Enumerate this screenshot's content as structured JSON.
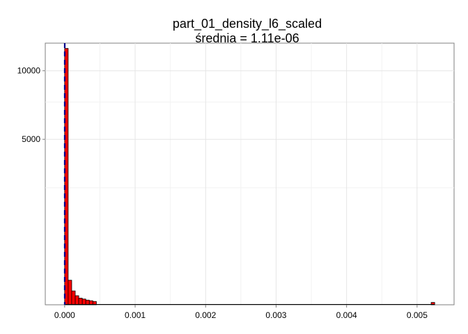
{
  "chart_data": {
    "type": "bar",
    "title": "part_01_density_l6_scaled",
    "subtitle": "średnia = 1.11e-06",
    "xlabel": "",
    "ylabel": "",
    "y_scale": "sqrt",
    "grid": true,
    "x_ticks": [
      "0.000",
      "0.001",
      "0.002",
      "0.003",
      "0.004",
      "0.005"
    ],
    "x_tick_values": [
      0,
      0.001,
      0.002,
      0.003,
      0.004,
      0.005
    ],
    "y_ticks": [
      "5000",
      "10000"
    ],
    "y_tick_values": [
      5000,
      10000
    ],
    "xlim": [
      -0.000275,
      0.005525
    ],
    "ylim": [
      0,
      12500
    ],
    "bin_width": 5e-05,
    "bin_starts": [
      0,
      5e-05,
      0.0001,
      0.00015,
      0.0002,
      0.00025,
      0.0003,
      0.00035,
      0.0004,
      0.0052
    ],
    "values": [
      12000,
      110,
      35,
      15,
      8,
      6,
      4,
      3,
      2,
      1
    ],
    "mean_line": {
      "x": 1.11e-06,
      "color": "#00008b"
    },
    "bar_fill": "#ff0000",
    "bar_outline": "#000000"
  }
}
